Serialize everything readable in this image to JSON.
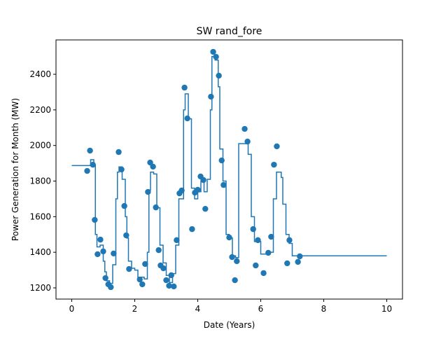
{
  "chart_data": {
    "type": "scatter",
    "title": "SW rand_fore",
    "x_label": "Date (Years)",
    "y_label": "Power Generation for Month (MW)",
    "xlim": [
      -0.5,
      10.5
    ],
    "ylim": [
      1137,
      2593
    ],
    "xticks": [
      0,
      2,
      4,
      6,
      8,
      10
    ],
    "yticks": [
      1200,
      1400,
      1600,
      1800,
      2000,
      2200,
      2400
    ],
    "series": [
      {
        "color": "#1f77b4",
        "x": [
          0.49,
          0.58,
          0.67,
          0.73,
          0.82,
          0.91,
          1.0,
          1.07,
          1.16,
          1.24,
          1.33,
          1.49,
          1.58,
          1.67,
          1.73,
          1.82,
          2.16,
          2.24,
          2.33,
          2.42,
          2.49,
          2.58,
          2.67,
          2.76,
          2.82,
          2.91,
          3.0,
          3.09,
          3.16,
          3.24,
          3.33,
          3.42,
          3.49,
          3.58,
          3.67,
          3.82,
          3.91,
          4.0,
          4.09,
          4.18,
          4.24,
          4.42,
          4.49,
          4.58,
          4.67,
          4.76,
          4.82,
          5.0,
          5.09,
          5.18,
          5.24,
          5.49,
          5.58,
          5.76,
          5.84,
          5.91,
          6.09,
          6.24,
          6.33,
          6.42,
          6.51,
          6.84,
          6.91,
          7.18,
          7.24
        ],
        "values": [
          1857,
          1971,
          1892,
          1582,
          1389,
          1471,
          1405,
          1255,
          1220,
          1204,
          1393,
          1963,
          1865,
          1660,
          1495,
          1306,
          1247,
          1220,
          1334,
          1739,
          1904,
          1881,
          1652,
          1412,
          1326,
          1310,
          1243,
          1212,
          1271,
          1208,
          1468,
          1731,
          1747,
          2325,
          2152,
          1530,
          1735,
          1751,
          1826,
          1806,
          1644,
          2274,
          2526,
          2498,
          2392,
          1916,
          1778,
          1483,
          1373,
          1243,
          1350,
          2093,
          2022,
          1530,
          1326,
          1468,
          1283,
          1397,
          1487,
          1892,
          1995,
          1338,
          1468,
          1346,
          1377
        ]
      },
      {
        "color": "#1f77b4",
        "drawstyle": "steps-post",
        "x": [
          0,
          0.6,
          0.7,
          0.75,
          0.8,
          0.9,
          1.0,
          1.05,
          1.1,
          1.2,
          1.3,
          1.4,
          1.45,
          1.5,
          1.6,
          1.7,
          1.75,
          1.8,
          1.9,
          2.0,
          2.1,
          2.3,
          2.4,
          2.45,
          2.5,
          2.6,
          2.7,
          2.8,
          2.9,
          3.0,
          3.1,
          3.2,
          3.3,
          3.4,
          3.55,
          3.6,
          3.7,
          3.8,
          3.9,
          4.0,
          4.1,
          4.2,
          4.3,
          4.4,
          4.45,
          4.55,
          4.65,
          4.7,
          4.8,
          4.9,
          5.0,
          5.1,
          5.2,
          5.3,
          5.5,
          5.6,
          5.7,
          5.8,
          5.9,
          6.0,
          6.2,
          6.4,
          6.5,
          6.65,
          6.7,
          6.8,
          6.9,
          7.0,
          7.2,
          10
        ],
        "values": [
          1887,
          1920,
          1890,
          1500,
          1430,
          1440,
          1350,
          1290,
          1240,
          1225,
          1330,
          1700,
          1850,
          1880,
          1810,
          1600,
          1480,
          1350,
          1310,
          1300,
          1260,
          1250,
          1400,
          1750,
          1850,
          1840,
          1650,
          1440,
          1340,
          1270,
          1230,
          1280,
          1440,
          1700,
          2200,
          2290,
          2150,
          1760,
          1700,
          1740,
          1800,
          1740,
          1810,
          2200,
          2500,
          2480,
          2330,
          1980,
          1800,
          1500,
          1480,
          1380,
          1370,
          2010,
          2010,
          1950,
          1600,
          1460,
          1460,
          1390,
          1400,
          1700,
          1850,
          1820,
          1670,
          1500,
          1450,
          1380,
          1380,
          1380
        ]
      }
    ]
  }
}
